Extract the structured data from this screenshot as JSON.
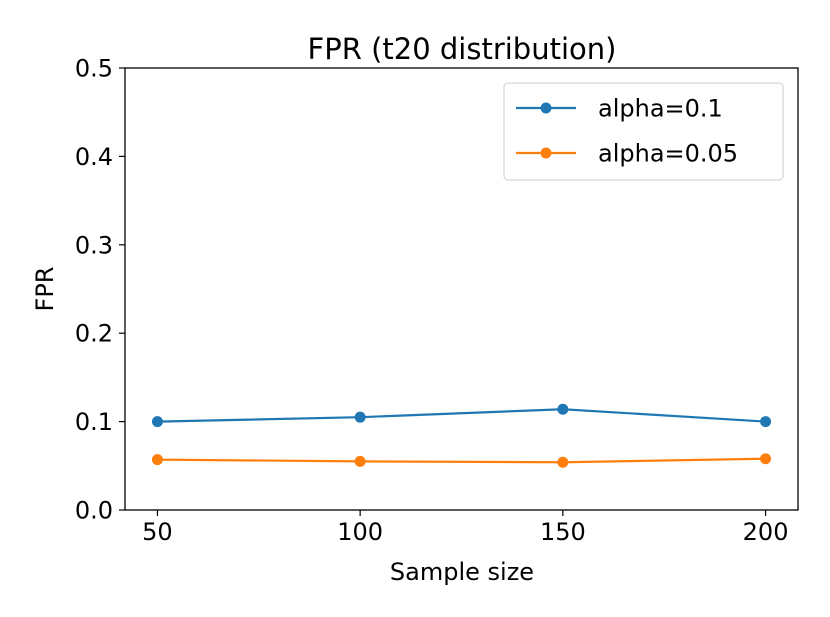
{
  "chart_data": {
    "type": "line",
    "title": "FPR (t20 distribution)",
    "xlabel": "Sample size",
    "ylabel": "FPR",
    "x": [
      50,
      100,
      150,
      200
    ],
    "xticks": [
      "50",
      "100",
      "150",
      "200"
    ],
    "yticks": [
      "0.0",
      "0.1",
      "0.2",
      "0.3",
      "0.4",
      "0.5"
    ],
    "xlim": [
      42,
      208
    ],
    "ylim": [
      0.0,
      0.5
    ],
    "grid": false,
    "legend_position": "upper right",
    "series": [
      {
        "name": "alpha=0.1",
        "color": "#1f77b4",
        "values": [
          0.1,
          0.105,
          0.114,
          0.1
        ]
      },
      {
        "name": "alpha=0.05",
        "color": "#ff7f0e",
        "values": [
          0.057,
          0.055,
          0.054,
          0.058
        ]
      }
    ]
  }
}
